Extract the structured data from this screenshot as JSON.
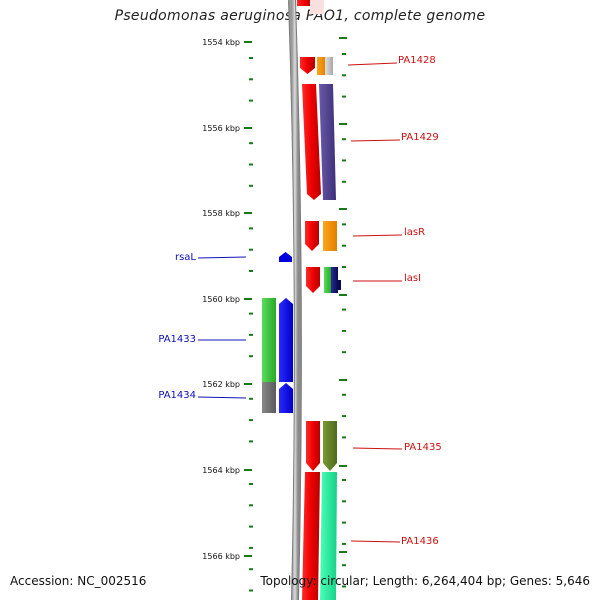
{
  "title": "Pseudomonas aeruginosa PAO1, complete genome",
  "footer": {
    "accession": "Accession: NC_002516",
    "topology": "Topology: circular; Length: 6,264,404 bp; Genes: 5,646"
  },
  "colors": {
    "tick": "#1a7a1a",
    "forward_label": "#cc1111",
    "reverse_label": "#1010bb"
  },
  "positions": [
    {
      "label": "1554 kbp"
    },
    {
      "label": "1556 kbp"
    },
    {
      "label": "1558 kbp"
    },
    {
      "label": "1560 kbp"
    },
    {
      "label": "1562 kbp"
    },
    {
      "label": "1564 kbp"
    },
    {
      "label": "1566 kbp"
    }
  ],
  "genes": [
    {
      "name": "PA1428",
      "strand": "forward",
      "color": "#cc1111"
    },
    {
      "name": "PA1429",
      "strand": "forward",
      "color": "#cc1111"
    },
    {
      "name": "lasR",
      "strand": "forward",
      "color": "#cc1111"
    },
    {
      "name": "lasI",
      "strand": "forward",
      "color": "#cc1111"
    },
    {
      "name": "rsaL",
      "strand": "reverse",
      "color": "#1010bb"
    },
    {
      "name": "PA1433",
      "strand": "reverse",
      "color": "#1010bb"
    },
    {
      "name": "PA1434",
      "strand": "reverse",
      "color": "#1010bb"
    },
    {
      "name": "PA1435",
      "strand": "forward",
      "color": "#cc1111"
    },
    {
      "name": "PA1436",
      "strand": "forward",
      "color": "#cc1111"
    }
  ]
}
